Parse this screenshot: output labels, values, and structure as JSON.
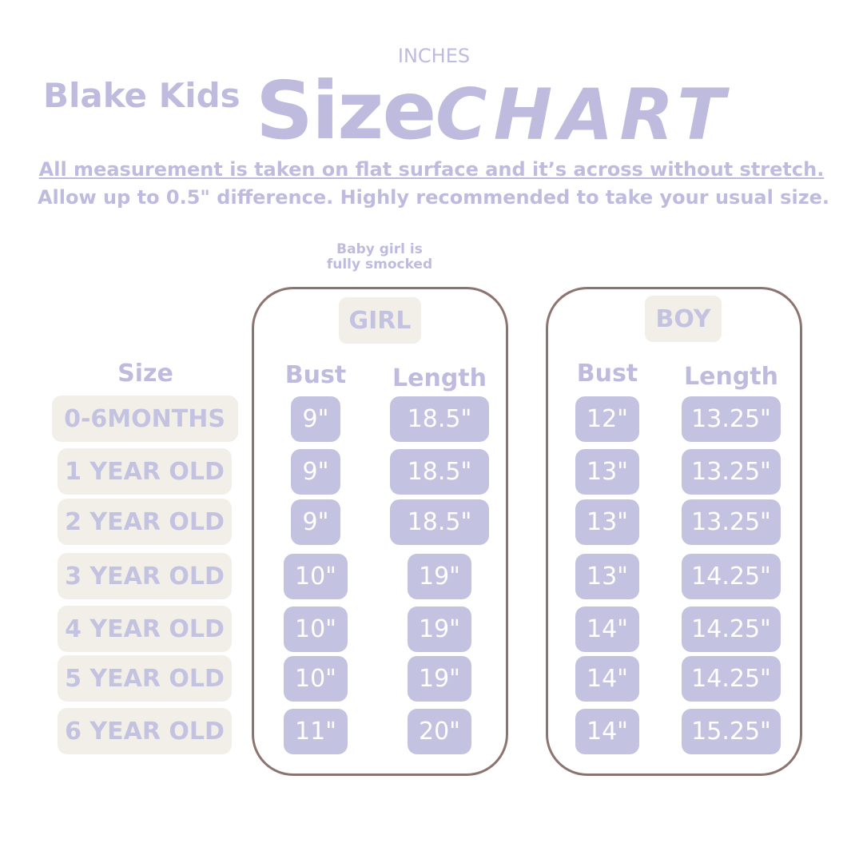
{
  "header": {
    "brand": "Blake Kids",
    "unit": "INCHES",
    "title_size": "Size",
    "title_chart": "CHART",
    "note_line1": "All measurement is taken on flat surface and it’s across without stretch.",
    "note_line2": "Allow up to 0.5\" difference. Highly recommended to take your usual size."
  },
  "girl_note": "Baby girl is fully smocked",
  "size_header": "Size",
  "sizes": [
    "0-6MONTHS",
    "1 YEAR OLD",
    "2 YEAR OLD",
    "3 YEAR OLD",
    "4 YEAR OLD",
    "5 YEAR OLD",
    "6 YEAR OLD"
  ],
  "girl": {
    "label": "GIRL",
    "columns": [
      "Bust",
      "Length"
    ],
    "rows": [
      [
        "9\"",
        "18.5\""
      ],
      [
        "9\"",
        "18.5\""
      ],
      [
        "9\"",
        "18.5\""
      ],
      [
        "10\"",
        "19\""
      ],
      [
        "10\"",
        "19\""
      ],
      [
        "10\"",
        "19\""
      ],
      [
        "11\"",
        "20\""
      ]
    ]
  },
  "boy": {
    "label": "BOY",
    "columns": [
      "Bust",
      "Length"
    ],
    "rows": [
      [
        "12\"",
        "13.25\""
      ],
      [
        "13\"",
        "13.25\""
      ],
      [
        "13\"",
        "13.25\""
      ],
      [
        "13\"",
        "14.25\""
      ],
      [
        "14\"",
        "14.25\""
      ],
      [
        "14\"",
        "14.25\""
      ],
      [
        "14\"",
        "15.25\""
      ]
    ]
  }
}
